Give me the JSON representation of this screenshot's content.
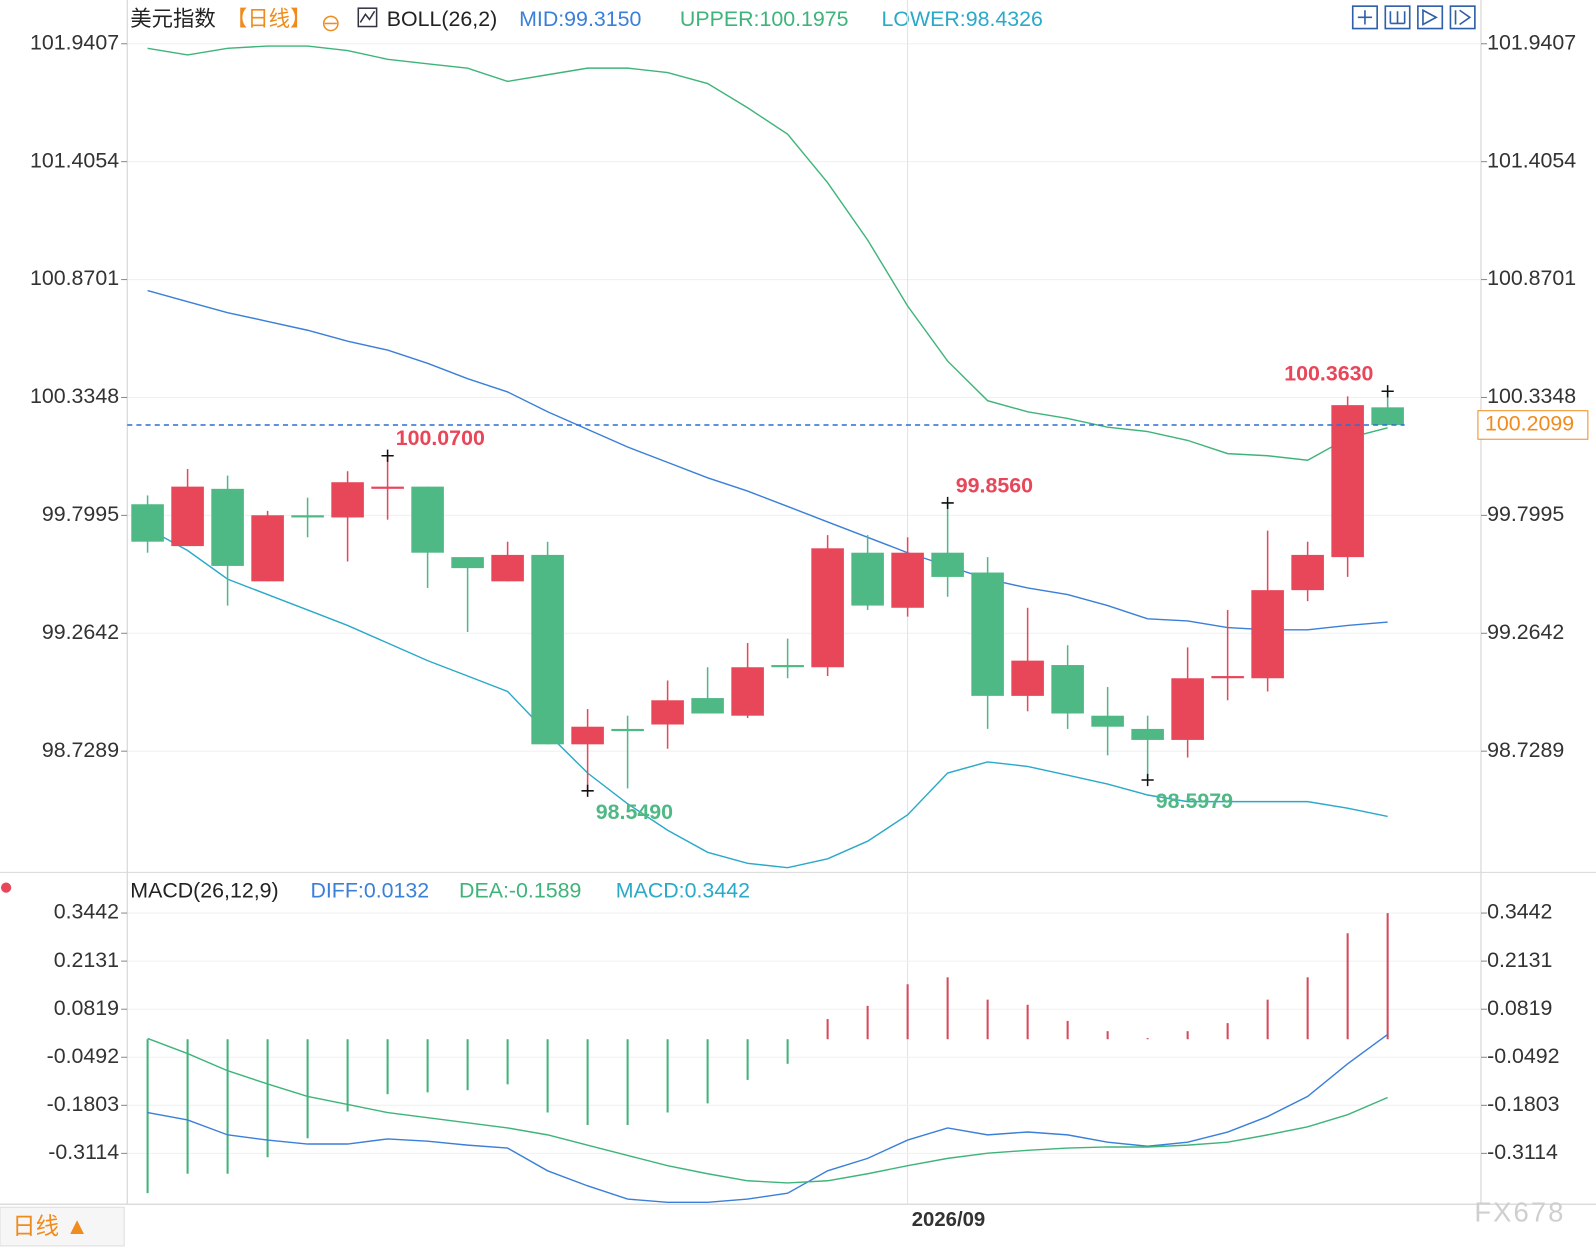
{
  "header": {
    "title": "美元指数",
    "period": "【日线】"
  },
  "period_button": "日线 ▲",
  "watermark": "FX678",
  "chart_data": [
    {
      "type": "candlestick",
      "title": "BOLL(26,2)",
      "categories": [
        null,
        null,
        null,
        null,
        null,
        null,
        null,
        null,
        null,
        null,
        null,
        null,
        null,
        null,
        null,
        null,
        null,
        null,
        null,
        "2026/09",
        null,
        null,
        null,
        null,
        null,
        null,
        null,
        null,
        null,
        null,
        null,
        null
      ],
      "open": [
        99.85,
        99.66,
        99.92,
        99.5,
        99.8,
        99.79,
        99.92,
        99.93,
        99.61,
        99.5,
        99.62,
        98.76,
        98.83,
        98.85,
        98.97,
        98.89,
        99.12,
        99.11,
        99.63,
        99.38,
        99.63,
        99.54,
        98.98,
        99.12,
        98.89,
        98.83,
        98.78,
        99.06,
        99.06,
        99.46,
        99.61,
        100.29
      ],
      "high": [
        99.89,
        100.01,
        99.98,
        99.82,
        99.88,
        100.0,
        100.07,
        99.93,
        99.61,
        99.68,
        99.68,
        98.92,
        98.89,
        99.05,
        99.11,
        99.22,
        99.24,
        99.71,
        99.71,
        99.7,
        99.856,
        99.61,
        99.38,
        99.21,
        99.02,
        98.89,
        99.2,
        99.37,
        99.73,
        99.68,
        100.34,
        100.363
      ],
      "low": [
        99.63,
        99.66,
        99.39,
        99.5,
        99.7,
        99.59,
        99.78,
        99.47,
        99.27,
        99.5,
        98.76,
        98.549,
        98.56,
        98.74,
        98.9,
        98.88,
        99.06,
        99.07,
        99.37,
        99.34,
        99.43,
        98.83,
        98.91,
        98.83,
        98.71,
        98.5979,
        98.7,
        98.96,
        99.0,
        99.41,
        99.52,
        100.2099
      ],
      "close": [
        99.68,
        99.93,
        99.57,
        99.8,
        99.79,
        99.95,
        99.93,
        99.63,
        99.56,
        99.62,
        98.76,
        98.84,
        98.82,
        98.96,
        98.9,
        99.11,
        99.11,
        99.65,
        99.39,
        99.63,
        99.52,
        98.98,
        99.14,
        98.9,
        98.84,
        98.78,
        99.06,
        99.07,
        99.46,
        99.62,
        100.3,
        100.2099
      ],
      "up_color": "#e8475a",
      "down_color": "#4fb985",
      "series": [
        {
          "name": "MID:99.3150",
          "color": "#3a7fd8",
          "values": [
            100.82,
            100.77,
            100.72,
            100.68,
            100.64,
            100.59,
            100.55,
            100.49,
            100.42,
            100.36,
            100.27,
            100.19,
            100.11,
            100.04,
            99.97,
            99.91,
            99.84,
            99.77,
            99.7,
            99.63,
            99.57,
            99.51,
            99.47,
            99.44,
            99.39,
            99.33,
            99.32,
            99.29,
            99.28,
            99.28,
            99.3,
            99.315
          ]
        },
        {
          "name": "UPPER:100.1975",
          "color": "#3fb47a",
          "values": [
            101.92,
            101.89,
            101.92,
            101.93,
            101.93,
            101.91,
            101.87,
            101.85,
            101.83,
            101.77,
            101.8,
            101.83,
            101.83,
            101.81,
            101.76,
            101.65,
            101.53,
            101.31,
            101.05,
            100.75,
            100.5,
            100.32,
            100.27,
            100.24,
            100.2,
            100.18,
            100.14,
            100.08,
            100.07,
            100.05,
            100.15,
            100.1975
          ]
        },
        {
          "name": "LOWER:98.4326",
          "color": "#2aa9c9",
          "values": [
            99.74,
            99.64,
            99.51,
            99.44,
            99.37,
            99.3,
            99.22,
            99.14,
            99.07,
            99.0,
            98.81,
            98.63,
            98.49,
            98.37,
            98.27,
            98.22,
            98.2,
            98.24,
            98.32,
            98.44,
            98.63,
            98.68,
            98.66,
            98.62,
            98.58,
            98.53,
            98.5,
            98.5,
            98.5,
            98.5,
            98.47,
            98.4326
          ]
        }
      ],
      "annotations": [
        {
          "value": 100.07,
          "label": "100.0700"
        },
        {
          "value": 98.549,
          "label": "98.5490"
        },
        {
          "value": 99.856,
          "label": "99.8560"
        },
        {
          "value": 98.5979,
          "label": "98.5979"
        },
        {
          "value": 100.363,
          "label": "100.3630"
        }
      ],
      "last_price": 100.2099,
      "last_price_color": "#f08c1e",
      "ylim": [
        98.188,
        102.116
      ],
      "yticks": [
        101.9407,
        101.4054,
        100.8701,
        100.3348,
        99.7995,
        99.2642,
        98.7289
      ],
      "grid": true
    },
    {
      "type": "macd",
      "title": "MACD(26,12,9)",
      "histogram_name": "MACD:0.3442",
      "histogram_color": "#2aa9c9",
      "values": [
        -0.42,
        -0.367,
        -0.367,
        -0.322,
        -0.27,
        -0.197,
        -0.15,
        -0.145,
        -0.139,
        -0.123,
        -0.2,
        -0.234,
        -0.234,
        -0.2,
        -0.175,
        -0.111,
        -0.067,
        0.055,
        0.091,
        0.15,
        0.169,
        0.108,
        0.094,
        0.05,
        0.022,
        0.003,
        0.022,
        0.044,
        0.108,
        0.169,
        0.289,
        0.3442
      ],
      "up_color": "#d9475a",
      "down_color": "#3fb47a",
      "series": [
        {
          "name": "DIFF:0.0132",
          "color": "#3a7fd8",
          "values": [
            -0.2,
            -0.22,
            -0.261,
            -0.275,
            -0.286,
            -0.286,
            -0.272,
            -0.278,
            -0.289,
            -0.297,
            -0.359,
            -0.4,
            -0.436,
            -0.445,
            -0.445,
            -0.436,
            -0.42,
            -0.359,
            -0.325,
            -0.275,
            -0.242,
            -0.261,
            -0.253,
            -0.261,
            -0.281,
            -0.292,
            -0.281,
            -0.253,
            -0.211,
            -0.156,
            -0.067,
            0.0132
          ]
        },
        {
          "name": "DEA:-0.1589",
          "color": "#3fb47a",
          "values": [
            0.002,
            -0.039,
            -0.086,
            -0.122,
            -0.156,
            -0.178,
            -0.2,
            -0.214,
            -0.228,
            -0.242,
            -0.261,
            -0.289,
            -0.317,
            -0.345,
            -0.367,
            -0.386,
            -0.392,
            -0.386,
            -0.367,
            -0.345,
            -0.325,
            -0.311,
            -0.303,
            -0.297,
            -0.294,
            -0.294,
            -0.289,
            -0.281,
            -0.261,
            -0.239,
            -0.206,
            -0.1589
          ]
        }
      ],
      "ylim": [
        -0.45,
        0.3775
      ],
      "yticks": [
        0.3442,
        0.2131,
        0.0819,
        -0.0492,
        -0.1803,
        -0.3114
      ],
      "grid": true
    }
  ]
}
